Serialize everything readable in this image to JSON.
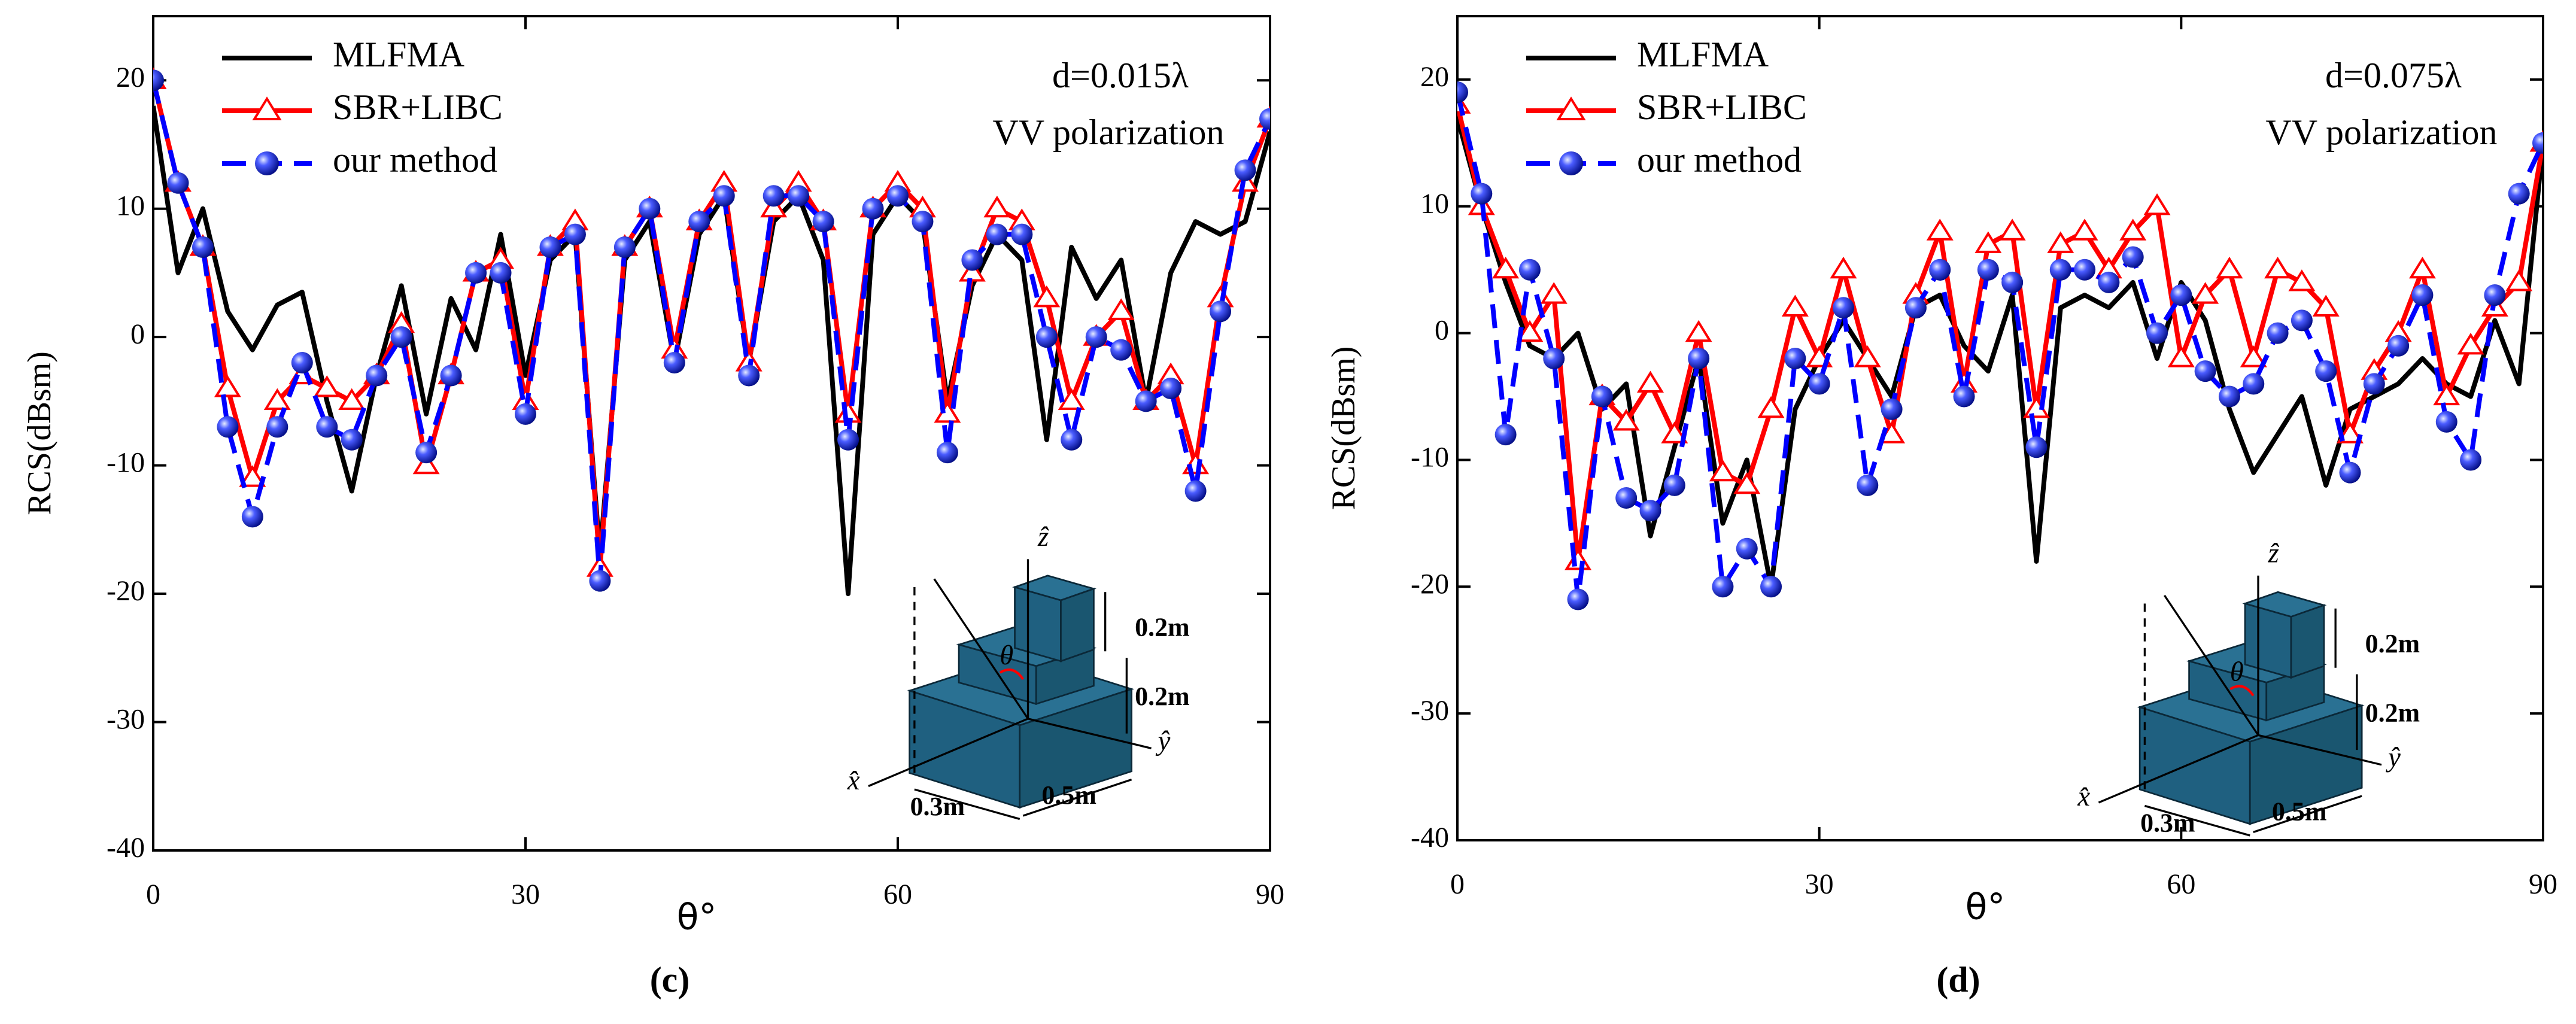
{
  "chart_data": [
    {
      "type": "line",
      "caption": "(c)",
      "xlabel": "θ°",
      "ylabel": "RCS(dBsm)",
      "annotations": [
        "d=0.015λ",
        "VV polarization"
      ],
      "inset_labels": [
        "ẑ",
        "ŷ",
        "x̂",
        "θ",
        "0.2m",
        "0.2m",
        "0.3m",
        "0.5m"
      ],
      "legend": "upper left",
      "xlim": [
        0,
        90
      ],
      "ylim": [
        -40,
        25
      ],
      "xticks": [
        0,
        30,
        60,
        90
      ],
      "yticks": [
        -40,
        -30,
        -20,
        -10,
        0,
        10,
        20
      ],
      "x": [
        0,
        2,
        4,
        6,
        8,
        10,
        12,
        14,
        16,
        18,
        20,
        22,
        24,
        26,
        28,
        30,
        32,
        34,
        36,
        38,
        40,
        42,
        44,
        46,
        48,
        50,
        52,
        54,
        56,
        58,
        60,
        62,
        64,
        66,
        68,
        70,
        72,
        74,
        76,
        78,
        80,
        82,
        84,
        86,
        88,
        90
      ],
      "series": [
        {
          "name": "MLFMA",
          "color": "#000000",
          "style": "solid",
          "marker": "none",
          "values": [
            18,
            5,
            10,
            2,
            -1,
            2.5,
            3.5,
            -5,
            -12,
            -3,
            4,
            -6,
            3,
            -1,
            8,
            -3,
            6,
            8,
            -17,
            6,
            9,
            -2,
            8,
            11,
            -2,
            9,
            11,
            6,
            -20,
            8,
            11,
            9,
            -5,
            4,
            8,
            6,
            -8,
            7,
            3,
            6,
            -5,
            5,
            9,
            8,
            9,
            16
          ]
        },
        {
          "name": "SBR+LIBC",
          "color": "#ff0000",
          "style": "solid",
          "marker": "triangle",
          "values": [
            20,
            12,
            7,
            -4,
            -11,
            -5,
            -3,
            -4,
            -5,
            -3,
            1,
            -10,
            -3,
            5,
            6,
            -5,
            7,
            9,
            -18,
            7,
            10,
            -1,
            9,
            12,
            -2,
            10,
            12,
            9,
            -6,
            10,
            12,
            10,
            -6,
            5,
            10,
            9,
            3,
            -5,
            0,
            2,
            -5,
            -3,
            -10,
            3,
            12,
            17
          ]
        },
        {
          "name": "our method",
          "color": "#0000ff",
          "style": "dashed",
          "marker": "sphere",
          "values": [
            20,
            12,
            7,
            -7,
            -14,
            -7,
            -2,
            -7,
            -8,
            -3,
            0,
            -9,
            -3,
            5,
            5,
            -6,
            7,
            8,
            -19,
            7,
            10,
            -2,
            9,
            11,
            -3,
            11,
            11,
            9,
            -8,
            10,
            11,
            9,
            -9,
            6,
            8,
            8,
            0,
            -8,
            0,
            -1,
            -5,
            -4,
            -12,
            2,
            13,
            17
          ]
        }
      ]
    },
    {
      "type": "line",
      "caption": "(d)",
      "xlabel": "θ°",
      "ylabel": "RCS(dBsm)",
      "annotations": [
        "d=0.075λ",
        "VV polarization"
      ],
      "inset_labels": [
        "ẑ",
        "ŷ",
        "x̂",
        "θ",
        "0.2m",
        "0.2m",
        "0.3m",
        "0.5m"
      ],
      "legend": "upper left",
      "xlim": [
        0,
        90
      ],
      "ylim": [
        -40,
        25
      ],
      "xticks": [
        0,
        30,
        60,
        90
      ],
      "yticks": [
        -40,
        -30,
        -20,
        -10,
        0,
        10,
        20
      ],
      "x": [
        0,
        2,
        4,
        6,
        8,
        10,
        12,
        14,
        16,
        18,
        20,
        22,
        24,
        26,
        28,
        30,
        32,
        34,
        36,
        38,
        40,
        42,
        44,
        46,
        48,
        50,
        52,
        54,
        56,
        58,
        60,
        62,
        64,
        66,
        68,
        70,
        72,
        74,
        76,
        78,
        80,
        82,
        84,
        86,
        88,
        90
      ],
      "series": [
        {
          "name": "MLFMA",
          "color": "#000000",
          "style": "solid",
          "marker": "none",
          "values": [
            17,
            10,
            4,
            -1,
            -2,
            0,
            -6,
            -4,
            -16,
            -9,
            -2,
            -15,
            -10,
            -20,
            -6,
            -2,
            1,
            -2,
            -5,
            2,
            3,
            -1,
            -3,
            3,
            -18,
            2,
            3,
            2,
            4,
            -2,
            4,
            1,
            -6,
            -11,
            -8,
            -5,
            -12,
            -6,
            -5,
            -4,
            -2,
            -4,
            -5,
            1,
            -4,
            15
          ]
        },
        {
          "name": "SBR+LIBC",
          "color": "#ff0000",
          "style": "solid",
          "marker": "triangle",
          "values": [
            18,
            10,
            5,
            0,
            3,
            -18,
            -5,
            -7,
            -4,
            -8,
            0,
            -11,
            -12,
            -6,
            2,
            -2,
            5,
            -2,
            -8,
            3,
            8,
            -4,
            7,
            8,
            -6,
            7,
            8,
            5,
            8,
            10,
            -2,
            3,
            5,
            -2,
            5,
            4,
            2,
            -8,
            -3,
            0,
            5,
            -5,
            -1,
            2,
            4,
            15
          ]
        },
        {
          "name": "our method",
          "color": "#0000ff",
          "style": "dashed",
          "marker": "sphere",
          "values": [
            19,
            11,
            -8,
            5,
            -2,
            -21,
            -5,
            -13,
            -14,
            -12,
            -2,
            -20,
            -17,
            -20,
            -2,
            -4,
            2,
            -12,
            -6,
            2,
            5,
            -5,
            5,
            4,
            -9,
            5,
            5,
            4,
            6,
            0,
            3,
            -3,
            -5,
            -4,
            0,
            1,
            -3,
            -11,
            -4,
            -1,
            3,
            -7,
            -10,
            3,
            11,
            15
          ]
        }
      ]
    }
  ]
}
